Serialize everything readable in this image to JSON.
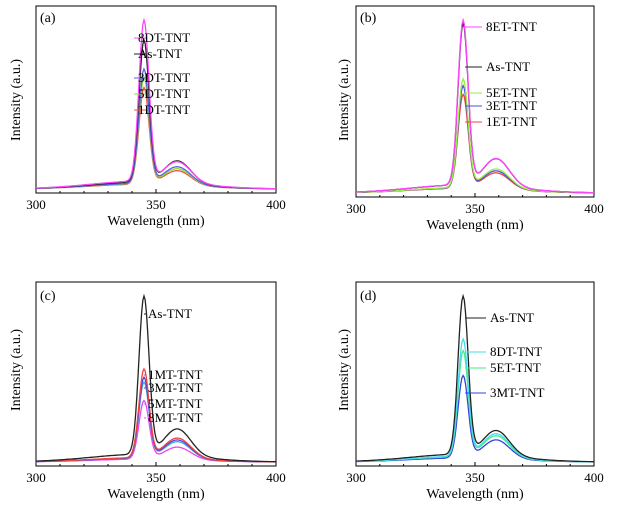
{
  "chart_data": [
    {
      "type": "line",
      "panel_label": "(a)",
      "xlabel": "Wavelength (nm)",
      "ylabel": "Intensity (a.u.)",
      "xlim": [
        300,
        400
      ],
      "xticks": [
        "300",
        "350",
        "400"
      ],
      "series": [
        {
          "name": "8DT-TNT",
          "color": "#ff44ff",
          "peak": 1.0,
          "shoulder": 0.13
        },
        {
          "name": "As-TNT",
          "color": "#222222",
          "peak": 0.88,
          "shoulder": 0.14
        },
        {
          "name": "3DT-TNT",
          "color": "#5566dd",
          "peak": 0.71,
          "shoulder": 0.11
        },
        {
          "name": "5DT-TNT",
          "color": "#88dd44",
          "peak": 0.66,
          "shoulder": 0.1
        },
        {
          "name": "1DT-TNT",
          "color": "#ee5544",
          "peak": 0.6,
          "shoulder": 0.09
        }
      ]
    },
    {
      "type": "line",
      "panel_label": "(b)",
      "xlabel": "Wavelength (nm)",
      "ylabel": "Intensity (a.u.)",
      "xlim": [
        300,
        400
      ],
      "xticks": [
        "300",
        "350",
        "400"
      ],
      "series": [
        {
          "name": "8ET-TNT",
          "color": "#ff44ff",
          "peak": 1.0,
          "shoulder": 0.17
        },
        {
          "name": "As-TNT",
          "color": "#222222",
          "peak": 0.98,
          "shoulder": 0.17
        },
        {
          "name": "5ET-TNT",
          "color": "#99ee44",
          "peak": 0.66,
          "shoulder": 0.12
        },
        {
          "name": "3ET-TNT",
          "color": "#4455dd",
          "peak": 0.62,
          "shoulder": 0.11
        },
        {
          "name": "1ET-TNT",
          "color": "#ee4444",
          "peak": 0.57,
          "shoulder": 0.1
        }
      ]
    },
    {
      "type": "line",
      "panel_label": "(c)",
      "xlabel": "Wavelength (nm)",
      "ylabel": "Intensity (a.u.)",
      "xlim": [
        300,
        400
      ],
      "xticks": [
        "300",
        "350",
        "400"
      ],
      "series": [
        {
          "name": "As-TNT",
          "color": "#222222",
          "peak": 1.0,
          "shoulder": 0.17
        },
        {
          "name": "1MT-TNT",
          "color": "#ee4444",
          "peak": 0.56,
          "shoulder": 0.13
        },
        {
          "name": "3MT-TNT",
          "color": "#5544dd",
          "peak": 0.51,
          "shoulder": 0.12
        },
        {
          "name": "5MT-TNT",
          "color": "#44aadd",
          "peak": 0.48,
          "shoulder": 0.11
        },
        {
          "name": "8MT-TNT",
          "color": "#ee44ee",
          "peak": 0.37,
          "shoulder": 0.08
        }
      ]
    },
    {
      "type": "line",
      "panel_label": "(d)",
      "xlabel": "Wavelength (nm)",
      "ylabel": "Intensity (a.u.)",
      "xlim": [
        300,
        400
      ],
      "xticks": [
        "300",
        "350",
        "400"
      ],
      "series": [
        {
          "name": "As-TNT",
          "color": "#222222",
          "peak": 1.0,
          "shoulder": 0.16
        },
        {
          "name": "8DT-TNT",
          "color": "#44ddee",
          "peak": 0.74,
          "shoulder": 0.15
        },
        {
          "name": "5ET-TNT",
          "color": "#44ee88",
          "peak": 0.67,
          "shoulder": 0.14
        },
        {
          "name": "3MT-TNT",
          "color": "#3344dd",
          "peak": 0.52,
          "shoulder": 0.12
        }
      ]
    }
  ]
}
